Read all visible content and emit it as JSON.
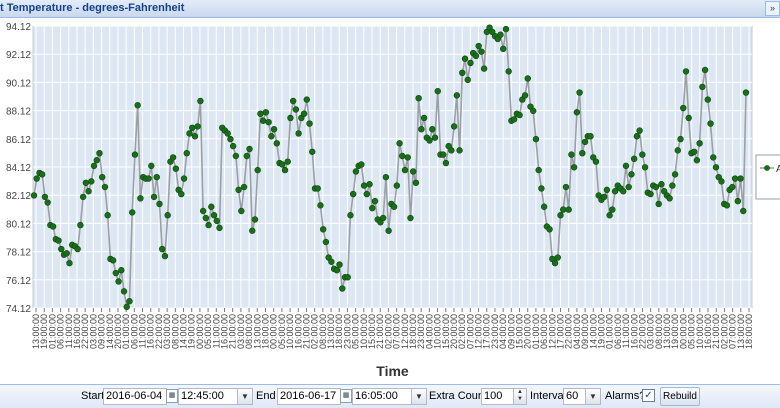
{
  "window": {
    "title": "t Temperature - degrees-Fahrenheit",
    "tool_icon": "collapse-icon"
  },
  "chart_data": {
    "type": "line",
    "title": "t Temperature - degrees-Fahrenheit",
    "xlabel": "Time",
    "ylabel": "",
    "ylim": [
      74.12,
      94.12
    ],
    "yticks": [
      74.12,
      76.12,
      78.12,
      80.12,
      82.12,
      84.12,
      86.12,
      88.12,
      90.12,
      92.12,
      94.12
    ],
    "ytick_labels": [
      "74.12",
      "76.12",
      "78.12",
      "80.12",
      "82.12",
      "84.12",
      "86.12",
      "88.12",
      "90.12",
      "92.12",
      "94.12"
    ],
    "xtick_labels": [
      "13:00:00",
      "19:00:00",
      "01:00:00",
      "06:00:00",
      "11:00:00",
      "16:00:00",
      "22:00:00",
      "03:00:00",
      "09:00:00",
      "14:00:00",
      "20:00:00",
      "01:00:00",
      "06:00:00",
      "11:00:00",
      "16:00:00",
      "22:00:00",
      "03:00:00",
      "08:00:00",
      "14:00:00",
      "19:00:00",
      "00:00:00",
      "05:00:00",
      "11:00:00",
      "16:00:00",
      "21:00:00",
      "03:00:00",
      "08:00:00",
      "13:00:00",
      "18:00:00",
      "00:00:00",
      "05:00:00",
      "10:00:00",
      "16:00:00",
      "21:00:00",
      "02:00:00",
      "08:00:00",
      "13:00:00",
      "18:00:00",
      "23:00:00",
      "05:00:00",
      "10:00:00",
      "15:00:00",
      "21:00:00",
      "02:00:00",
      "07:00:00",
      "12:00:00",
      "18:00:00",
      "23:00:00",
      "04:00:00",
      "10:00:00",
      "15:00:00",
      "20:00:00",
      "02:00:00",
      "07:00:00",
      "12:00:00",
      "17:00:00",
      "23:00:00",
      "04:00:00",
      "09:00:00",
      "15:00:00",
      "20:00:00",
      "01:00:00",
      "06:00:00",
      "12:00:00",
      "17:00:00",
      "22:00:00",
      "04:00:00",
      "09:00:00",
      "14:00:00",
      "19:00:00",
      "01:00:00",
      "06:00:00",
      "11:00:00",
      "16:00:00",
      "22:00:00",
      "03:00:00",
      "08:00:00",
      "13:00:00",
      "19:00:00",
      "00:00:00",
      "05:00:00",
      "10:00:00",
      "16:00:00",
      "21:00:00",
      "02:00:00",
      "07:00:00",
      "13:00:00",
      "18:00:00"
    ],
    "grid": true,
    "legend_position": "right",
    "series": [
      {
        "name": "A",
        "color": "#1a6e1a",
        "line_color": "#9aa0a6",
        "values": [
          82.1,
          83.3,
          83.7,
          83.6,
          82.0,
          81.6,
          80.0,
          79.9,
          79.0,
          78.9,
          78.3,
          77.9,
          78.0,
          77.3,
          78.6,
          78.5,
          78.3,
          80.0,
          82.0,
          83.0,
          82.4,
          83.1,
          84.2,
          84.6,
          85.1,
          83.4,
          82.7,
          80.7,
          77.6,
          77.5,
          76.6,
          76.0,
          76.8,
          75.3,
          74.2,
          74.6,
          80.9,
          85.0,
          88.5,
          81.9,
          83.4,
          83.3,
          83.3,
          84.2,
          82.0,
          83.4,
          81.5,
          78.3,
          77.8,
          80.7,
          84.5,
          84.8,
          84.0,
          82.5,
          82.2,
          83.3,
          85.1,
          86.5,
          86.9,
          86.3,
          87.0,
          88.8,
          81.0,
          80.5,
          80.0,
          81.3,
          80.7,
          80.3,
          79.8,
          86.9,
          86.7,
          86.5,
          86.1,
          85.6,
          84.9,
          82.5,
          81.0,
          82.7,
          84.9,
          85.4,
          79.6,
          80.4,
          83.9,
          87.9,
          87.4,
          88.0,
          87.3,
          86.3,
          86.8,
          85.8,
          84.4,
          84.3,
          83.9,
          84.5,
          87.6,
          88.8,
          88.2,
          86.5,
          87.6,
          87.9,
          88.9,
          87.2,
          85.2,
          82.6,
          82.6,
          81.4,
          79.7,
          78.8,
          77.7,
          77.4,
          76.9,
          76.8,
          77.2,
          75.5,
          76.3,
          76.3,
          80.7,
          82.2,
          83.8,
          84.2,
          84.3,
          82.8,
          82.2,
          82.9,
          81.2,
          81.7,
          80.4,
          80.2,
          80.5,
          83.4,
          79.6,
          81.5,
          81.3,
          82.8,
          85.8,
          84.9,
          83.9,
          84.8,
          80.5,
          83.8,
          83.0,
          89.0,
          86.8,
          87.6,
          86.2,
          86.0,
          86.8,
          86.2,
          89.5,
          85.0,
          85.0,
          84.4,
          85.6,
          85.3,
          87.0,
          89.2,
          85.3,
          90.8,
          91.8,
          90.3,
          91.5,
          92.2,
          92.0,
          92.7,
          92.3,
          91.1,
          93.7,
          94.0,
          93.7,
          93.4,
          93.2,
          93.5,
          92.5,
          93.9,
          90.9,
          87.4,
          87.5,
          87.9,
          87.8,
          88.9,
          89.2,
          90.4,
          88.4,
          88.1,
          86.1,
          83.9,
          82.6,
          81.3,
          79.9,
          79.7,
          77.6,
          77.3,
          77.7,
          80.7,
          81.1,
          82.7,
          81.1,
          85.0,
          84.1,
          88.0,
          89.4,
          85.1,
          85.9,
          86.3,
          86.3,
          84.8,
          84.5,
          82.1,
          81.8,
          82.0,
          82.5,
          80.7,
          81.1,
          82.4,
          82.8,
          82.6,
          82.4,
          84.2,
          82.7,
          83.6,
          84.7,
          86.3,
          86.7,
          85.0,
          84.1,
          82.3,
          82.2,
          82.8,
          82.7,
          81.5,
          82.9,
          82.4,
          82.1,
          81.9,
          82.8,
          83.6,
          85.3,
          86.1,
          88.3,
          90.9,
          87.6,
          85.1,
          85.2,
          84.6,
          85.8,
          89.8,
          91.0,
          88.9,
          87.2,
          84.8,
          84.1,
          83.4,
          83.1,
          81.5,
          81.4,
          82.5,
          82.7,
          83.3,
          81.7,
          83.3,
          81.0,
          89.4
        ]
      }
    ]
  },
  "toolbar": {
    "start_label": "Start",
    "start_date": "2016-06-04",
    "start_time": "12:45:00",
    "end_label": "End",
    "end_date": "2016-06-17",
    "end_time": "16:05:00",
    "extra_count_label": "Extra Count",
    "extra_count_value": "100",
    "interval_label": "Interval",
    "interval_value": "60",
    "alarms_label": "Alarms?",
    "alarms_checked": true,
    "rebuild_label": "Rebuild",
    "calendar_icon": "calendar-icon",
    "dropdown_icon": "chevron-down-icon",
    "spinner_icon": "spinner-icon"
  }
}
